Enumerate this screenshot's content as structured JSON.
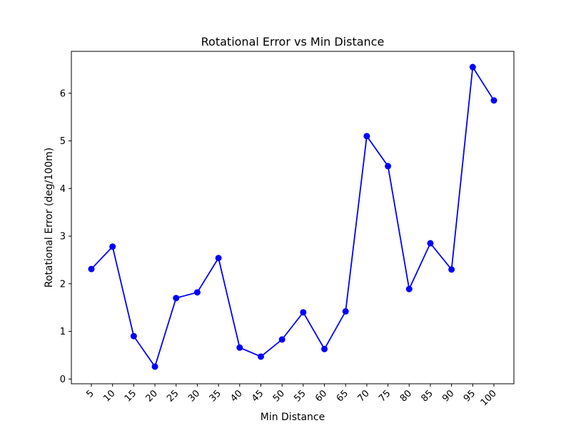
{
  "chart_data": {
    "type": "line",
    "title": "Rotational Error vs Min Distance",
    "xlabel": "Min Distance",
    "ylabel": "Rotational Error (deg/100m)",
    "categories": [
      "5",
      "10",
      "15",
      "20",
      "25",
      "30",
      "35",
      "40",
      "45",
      "50",
      "55",
      "60",
      "65",
      "70",
      "75",
      "80",
      "85",
      "90",
      "95",
      "100"
    ],
    "series": [
      {
        "values": [
          2.31,
          2.78,
          0.9,
          0.26,
          1.7,
          1.82,
          2.54,
          0.66,
          0.47,
          0.83,
          1.4,
          0.63,
          1.42,
          5.1,
          4.47,
          1.89,
          2.85,
          2.3,
          6.55,
          5.85
        ],
        "color": "#0000ff",
        "marker": "circle"
      }
    ],
    "ylim": [
      -0.1,
      6.88
    ],
    "yticks": [
      0,
      1,
      2,
      3,
      4,
      5,
      6
    ],
    "grid": false,
    "legend": "none"
  }
}
